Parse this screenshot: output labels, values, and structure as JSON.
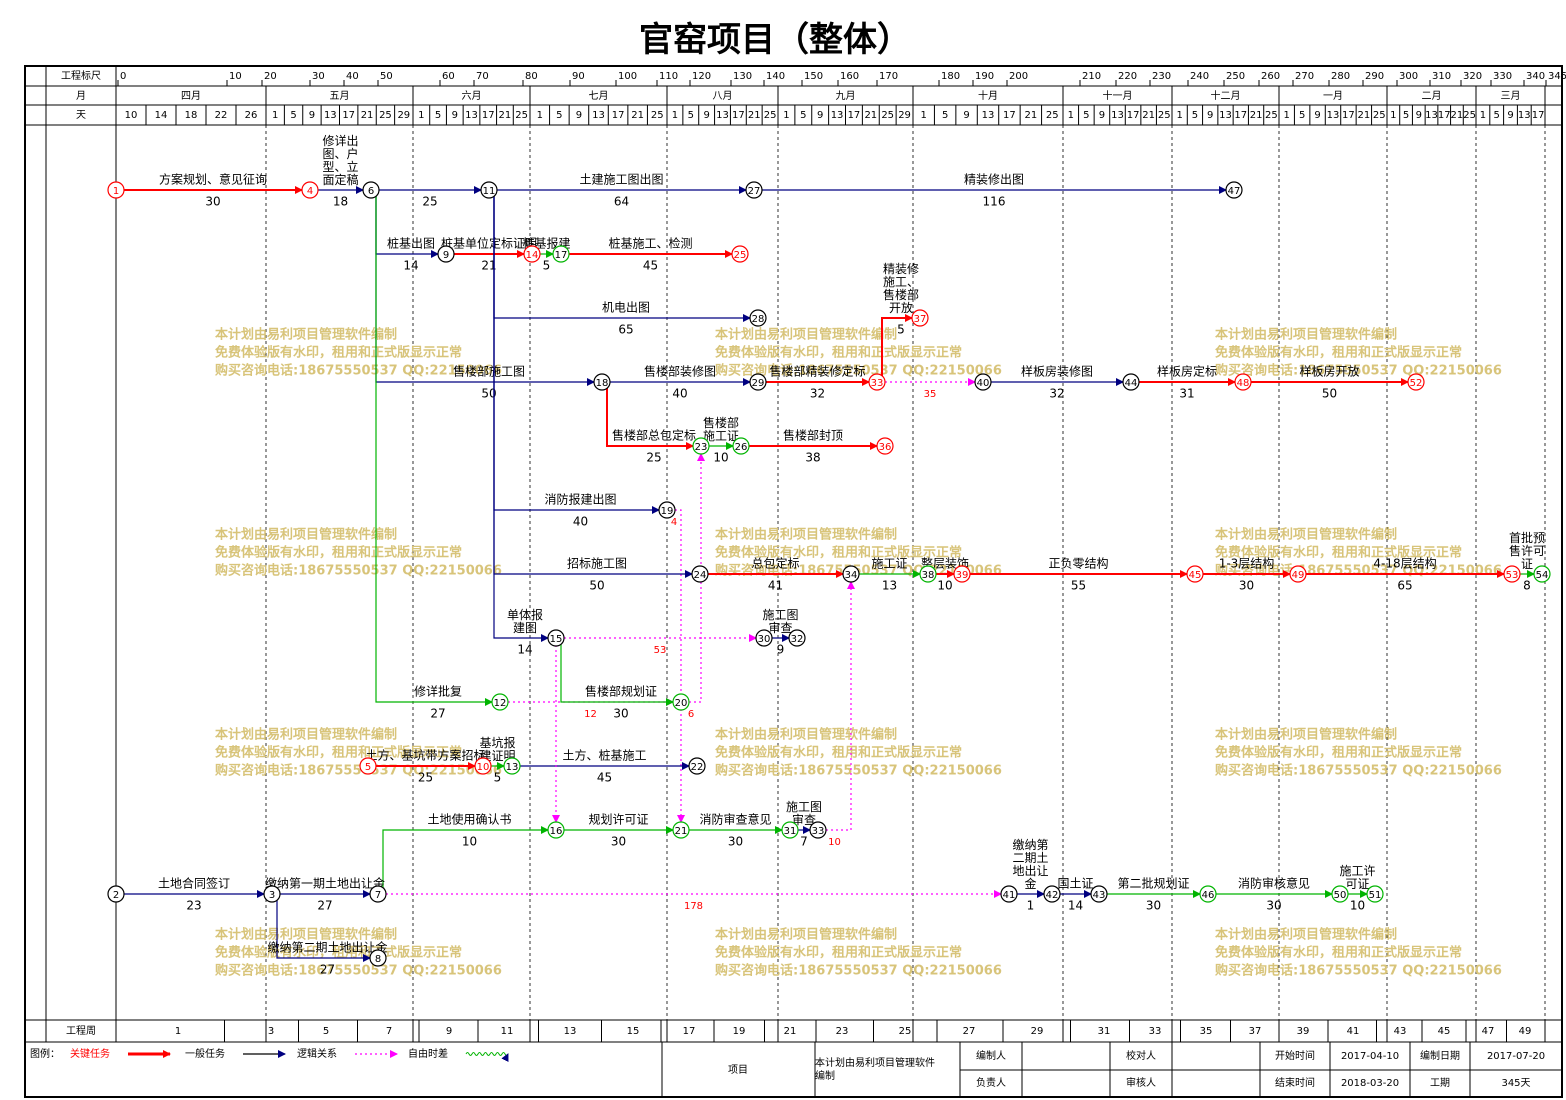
{
  "header": {
    "title": "官窑项目（整体）"
  },
  "scale": {
    "ruler_label": "工程标尺",
    "ruler": [
      0,
      10,
      20,
      30,
      40,
      50,
      60,
      70,
      80,
      90,
      100,
      110,
      120,
      130,
      140,
      150,
      160,
      170,
      180,
      190,
      200,
      210,
      220,
      230,
      240,
      250,
      260,
      270,
      280,
      290,
      300,
      310,
      320,
      330,
      340,
      345
    ],
    "month_label": "月",
    "day_label": "天",
    "months": [
      {
        "name": "四月",
        "days": [
          10,
          14,
          18,
          22,
          26
        ]
      },
      {
        "name": "五月",
        "days": [
          1,
          5,
          9,
          13,
          17,
          21,
          25,
          29
        ]
      },
      {
        "name": "六月",
        "days": [
          1,
          5,
          9,
          13,
          17,
          21,
          25
        ]
      },
      {
        "name": "七月",
        "days": [
          1,
          5,
          9,
          13,
          17,
          21,
          25
        ]
      },
      {
        "name": "八月",
        "days": [
          1,
          5,
          9,
          13,
          17,
          21,
          25
        ]
      },
      {
        "name": "九月",
        "days": [
          1,
          5,
          9,
          13,
          17,
          21,
          25,
          29
        ]
      },
      {
        "name": "十月",
        "days": [
          1,
          5,
          9,
          13,
          17,
          21,
          25
        ]
      },
      {
        "name": "十一月",
        "days": [
          1,
          5,
          9,
          13,
          17,
          21,
          25
        ]
      },
      {
        "name": "十二月",
        "days": [
          1,
          5,
          9,
          13,
          17,
          21,
          25
        ]
      },
      {
        "name": "一月",
        "days": [
          1,
          5,
          9,
          13,
          17,
          21,
          25
        ]
      },
      {
        "name": "二月",
        "days": [
          1,
          5,
          9,
          13,
          17,
          21,
          25
        ]
      },
      {
        "name": "三月",
        "days": [
          1,
          5,
          9,
          13,
          17
        ]
      }
    ],
    "week_label": "工程周",
    "weeks": [
      1,
      3,
      5,
      7,
      9,
      11,
      13,
      15,
      17,
      19,
      21,
      23,
      25,
      27,
      29,
      31,
      33,
      35,
      37,
      39,
      41,
      43,
      45,
      47,
      49
    ]
  },
  "styles": {
    "critical": "#ff0000",
    "normal": "#000080",
    "float": "#00b400",
    "lag": "#ff00ff"
  },
  "nodes": [
    {
      "label": "1",
      "kind": "critical"
    },
    {
      "label": "4",
      "kind": "critical"
    },
    {
      "label": "6",
      "kind": "normal"
    },
    {
      "label": "11",
      "kind": "normal"
    },
    {
      "label": "27",
      "kind": "normal"
    },
    {
      "label": "47",
      "kind": "normal"
    },
    {
      "label": "9",
      "kind": "normal"
    },
    {
      "label": "14",
      "kind": "critical"
    },
    {
      "label": "17",
      "kind": "float"
    },
    {
      "label": "25",
      "kind": "critical"
    },
    {
      "label": "28",
      "kind": "normal"
    },
    {
      "label": "37",
      "kind": "critical"
    },
    {
      "label": "18",
      "kind": "normal"
    },
    {
      "label": "29",
      "kind": "normal"
    },
    {
      "label": "33",
      "kind": "critical"
    },
    {
      "label": "40",
      "kind": "normal"
    },
    {
      "label": "44",
      "kind": "normal"
    },
    {
      "label": "48",
      "kind": "critical"
    },
    {
      "label": "52",
      "kind": "critical"
    },
    {
      "label": "23",
      "kind": "float"
    },
    {
      "label": "26",
      "kind": "float"
    },
    {
      "label": "36",
      "kind": "critical"
    },
    {
      "label": "19",
      "kind": "normal"
    },
    {
      "label": "24",
      "kind": "normal"
    },
    {
      "label": "34",
      "kind": "normal"
    },
    {
      "label": "38",
      "kind": "float"
    },
    {
      "label": "39",
      "kind": "critical"
    },
    {
      "label": "45",
      "kind": "critical"
    },
    {
      "label": "49",
      "kind": "critical"
    },
    {
      "label": "53",
      "kind": "critical"
    },
    {
      "label": "54",
      "kind": "float"
    },
    {
      "label": "15",
      "kind": "normal"
    },
    {
      "label": "30",
      "kind": "normal"
    },
    {
      "label": "32",
      "kind": "normal"
    },
    {
      "label": "12",
      "kind": "float"
    },
    {
      "label": "20",
      "kind": "float"
    },
    {
      "label": "5",
      "kind": "critical"
    },
    {
      "label": "10",
      "kind": "critical"
    },
    {
      "label": "13",
      "kind": "float"
    },
    {
      "label": "22",
      "kind": "normal"
    },
    {
      "label": "16",
      "kind": "float"
    },
    {
      "label": "21",
      "kind": "float"
    },
    {
      "label": "31",
      "kind": "float"
    },
    {
      "label": "33",
      "kind": "normal"
    },
    {
      "label": "2",
      "kind": "normal"
    },
    {
      "label": "3",
      "kind": "normal"
    },
    {
      "label": "7",
      "kind": "normal"
    },
    {
      "label": "41",
      "kind": "normal"
    },
    {
      "label": "42",
      "kind": "normal"
    },
    {
      "label": "43",
      "kind": "normal"
    },
    {
      "label": "46",
      "kind": "float"
    },
    {
      "label": "50",
      "kind": "float"
    },
    {
      "label": "51",
      "kind": "float"
    },
    {
      "label": "8",
      "kind": "normal"
    }
  ],
  "edges": [
    {
      "from": 0,
      "to": 1,
      "name": "方案规划、意见征询",
      "duration": 30,
      "kind": "critical"
    },
    {
      "from": 1,
      "to": 2,
      "name": "修详出图、户型、立面定稿",
      "duration": 18,
      "kind": "normal"
    },
    {
      "from": 2,
      "to": 3,
      "duration": 25,
      "kind": "normal"
    },
    {
      "from": 3,
      "to": 4,
      "name": "土建施工图出图",
      "duration": 64,
      "kind": "normal"
    },
    {
      "from": 4,
      "to": 5,
      "name": "精装修出图",
      "duration": 116,
      "kind": "normal"
    },
    {
      "from": 2,
      "to": 6,
      "name": "桩基出图",
      "duration": 14,
      "kind": "normal"
    },
    {
      "from": 6,
      "to": 7,
      "name": "桩基单位定标证明",
      "duration": 21,
      "kind": "critical"
    },
    {
      "from": 7,
      "to": 8,
      "name": "桩基报建",
      "duration": 5,
      "kind": "float"
    },
    {
      "from": 8,
      "to": 9,
      "name": "桩基施工、检测",
      "duration": 45,
      "kind": "critical"
    },
    {
      "from": 3,
      "to": 10,
      "name": "机电出图",
      "duration": 65,
      "kind": "normal"
    },
    {
      "from": 14,
      "to": 11,
      "name": "精装修施工、售楼部开放",
      "duration": 5,
      "kind": "critical"
    },
    {
      "from": 2,
      "to": 12,
      "name": "售楼部施工图",
      "duration": 50,
      "kind": "normal"
    },
    {
      "from": 12,
      "to": 13,
      "name": "售楼部装修图",
      "duration": 40,
      "kind": "normal"
    },
    {
      "from": 13,
      "to": 14,
      "name": "售楼部精装修定标",
      "duration": 32,
      "kind": "critical"
    },
    {
      "from": 14,
      "to": 15,
      "duration": 35,
      "kind": "lag"
    },
    {
      "from": 15,
      "to": 16,
      "name": "样板房装修图",
      "duration": 32,
      "kind": "normal"
    },
    {
      "from": 16,
      "to": 17,
      "name": "样板房定标",
      "duration": 31,
      "kind": "critical"
    },
    {
      "from": 17,
      "to": 18,
      "name": "样板房开放",
      "duration": 50,
      "kind": "critical"
    },
    {
      "from": 12,
      "to": 19,
      "name": "售楼部总包定标",
      "duration": 25,
      "kind": "critical"
    },
    {
      "from": 19,
      "to": 20,
      "name": "售楼部施工证",
      "duration": 10,
      "kind": "float"
    },
    {
      "from": 20,
      "to": 21,
      "name": "售楼部封顶",
      "duration": 38,
      "kind": "critical"
    },
    {
      "from": 3,
      "to": 22,
      "name": "消防报建出图",
      "duration": 40,
      "kind": "normal"
    },
    {
      "from": 22,
      "to": 41,
      "duration": 4,
      "kind": "lag"
    },
    {
      "from": 3,
      "to": 23,
      "name": "招标施工图",
      "duration": 50,
      "kind": "normal"
    },
    {
      "from": 23,
      "to": 24,
      "name": "总包定标",
      "duration": 41,
      "kind": "critical"
    },
    {
      "from": 24,
      "to": 25,
      "name": "施工证",
      "duration": 13,
      "kind": "float"
    },
    {
      "from": 25,
      "to": 26,
      "name": "整层装饰",
      "duration": 10,
      "kind": "critical"
    },
    {
      "from": 26,
      "to": 27,
      "name": "正负零结构",
      "duration": 55,
      "kind": "critical"
    },
    {
      "from": 27,
      "to": 28,
      "name": "1-3层结构",
      "duration": 30,
      "kind": "critical"
    },
    {
      "from": 28,
      "to": 29,
      "name": "4-18层结构",
      "duration": 65,
      "kind": "critical"
    },
    {
      "from": 29,
      "to": 30,
      "name": "首批预售许可证",
      "duration": 8,
      "kind": "float"
    },
    {
      "from": 3,
      "to": 31,
      "name": "单体报建图",
      "duration": 14,
      "kind": "normal"
    },
    {
      "from": 31,
      "to": 32,
      "duration": 53,
      "kind": "lag"
    },
    {
      "from": 32,
      "to": 33,
      "name": "施工图审查",
      "duration": 9,
      "kind": "normal"
    },
    {
      "from": 2,
      "to": 34,
      "name": "修详批复",
      "duration": 27,
      "kind": "float"
    },
    {
      "from": 34,
      "to": 35,
      "duration": 12,
      "kind": "lag"
    },
    {
      "from": 31,
      "to": 35,
      "name": "售楼部规划证",
      "duration": 30,
      "kind": "float"
    },
    {
      "from": 35,
      "to": 19,
      "duration": 6,
      "kind": "lag"
    },
    {
      "from": 36,
      "to": 37,
      "name": "土方、基坑带方案招标",
      "duration": 25,
      "kind": "critical"
    },
    {
      "from": 37,
      "to": 38,
      "name": "基坑报建证明",
      "duration": 5,
      "kind": "float"
    },
    {
      "from": 38,
      "to": 39,
      "name": "土方、桩基施工",
      "duration": 45,
      "kind": "normal"
    },
    {
      "from": 46,
      "to": 40,
      "name": "土地使用确认书",
      "duration": 10,
      "kind": "float"
    },
    {
      "from": 31,
      "to": 40,
      "kind": "lag"
    },
    {
      "from": 40,
      "to": 41,
      "name": "规划许可证",
      "duration": 30,
      "kind": "float"
    },
    {
      "from": 41,
      "to": 42,
      "name": "消防审查意见",
      "duration": 30,
      "kind": "float"
    },
    {
      "from": 42,
      "to": 43,
      "name": "施工图审查",
      "duration": 7,
      "kind": "normal"
    },
    {
      "from": 43,
      "to": 24,
      "duration": 10,
      "kind": "lag"
    },
    {
      "from": 44,
      "to": 45,
      "name": "土地合同签订",
      "duration": 23,
      "kind": "normal"
    },
    {
      "from": 45,
      "to": 46,
      "name": "缴纳第一期土地出让金",
      "duration": 27,
      "kind": "normal"
    },
    {
      "from": 46,
      "to": 47,
      "duration": 178,
      "kind": "lag"
    },
    {
      "from": 47,
      "to": 48,
      "name": "缴纳第二期土地出让金",
      "duration": 1,
      "kind": "normal"
    },
    {
      "from": 48,
      "to": 49,
      "name": "国土证",
      "duration": 14,
      "kind": "normal"
    },
    {
      "from": 49,
      "to": 50,
      "name": "第二批规划证",
      "duration": 30,
      "kind": "float"
    },
    {
      "from": 50,
      "to": 51,
      "name": "消防审核意见",
      "duration": 30,
      "kind": "float"
    },
    {
      "from": 51,
      "to": 52,
      "name": "施工许可证",
      "duration": 10,
      "kind": "float"
    },
    {
      "from": 45,
      "to": 53,
      "name": "缴纳第二期土地出让金",
      "duration": 27,
      "kind": "normal"
    }
  ],
  "watermark": [
    "本计划由易利项目管理软件编制",
    "免费体验版有水印，租用和正式版显示正常",
    "购买咨询电话:18675550537 QQ:22150066"
  ],
  "legend": {
    "title": "图例：",
    "items": [
      {
        "label": "关键任务",
        "kind": "critical"
      },
      {
        "label": "一般任务",
        "kind": "normal"
      },
      {
        "label": "逻辑关系",
        "kind": "lag"
      },
      {
        "label": "自由时差",
        "kind": "float"
      }
    ]
  },
  "info": {
    "project": "项目",
    "note": "本计划由易利项目管理软件编制",
    "cells": [
      {
        "label": "编制人"
      },
      {
        "label": "校对人"
      },
      {
        "label": "开始时间",
        "value": "2017-04-10"
      },
      {
        "label": "编制日期",
        "value": "2017-07-20"
      },
      {
        "label": "负责人"
      },
      {
        "label": "审核人"
      },
      {
        "label": "结束时间",
        "value": "2018-03-20"
      },
      {
        "label": "工期",
        "value": "345天"
      }
    ]
  }
}
